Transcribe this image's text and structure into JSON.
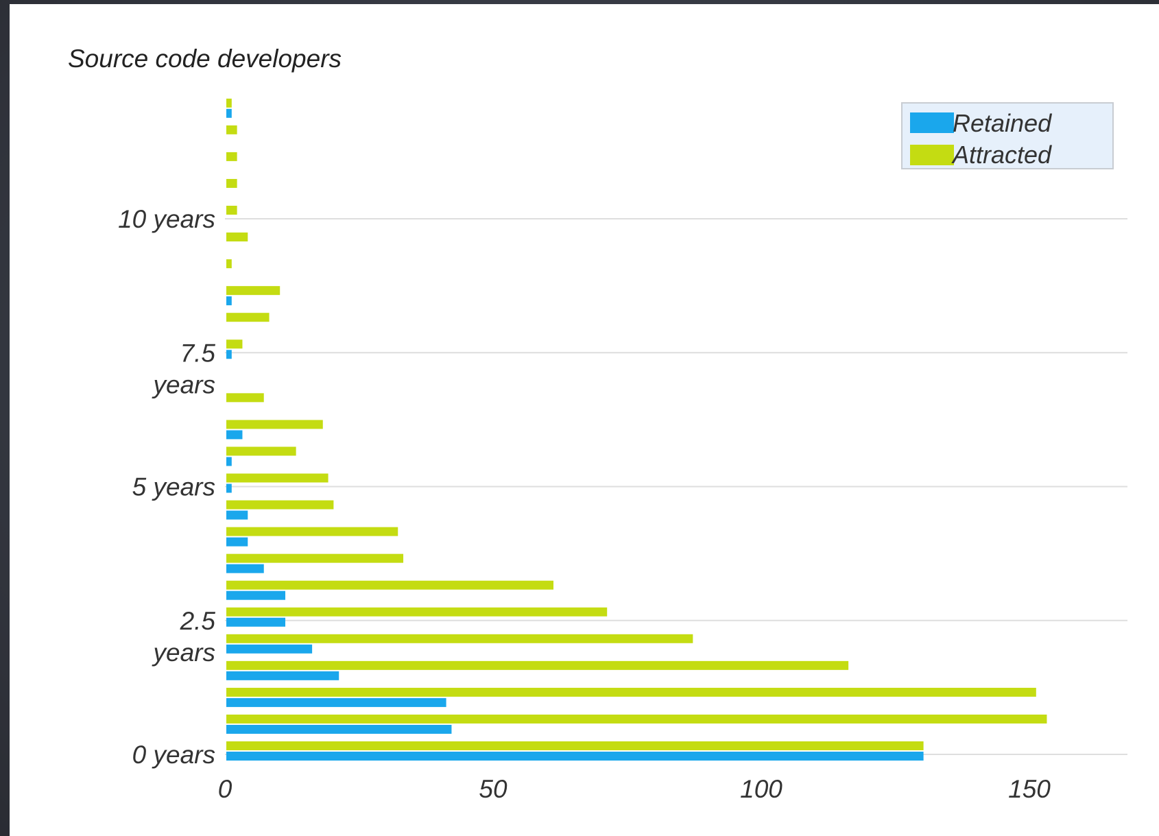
{
  "colors": {
    "retained": "#1aa7ec",
    "attracted": "#c4dc12"
  },
  "chart_data": {
    "type": "bar",
    "orientation": "horizontal",
    "title": "Source code developers",
    "xlabel": "",
    "ylabel": "",
    "xlim": [
      0,
      165
    ],
    "xticks": [
      "0",
      "50",
      "100",
      "150"
    ],
    "xtick_values": [
      0,
      50,
      100,
      150
    ],
    "yticks": [
      {
        "label": [
          "0 years"
        ],
        "value": 0
      },
      {
        "label": [
          "2.5",
          "years"
        ],
        "value": 2.5
      },
      {
        "label": [
          "5 years"
        ],
        "value": 5
      },
      {
        "label": [
          "7.5",
          "years"
        ],
        "value": 7.5
      },
      {
        "label": [
          "10 years"
        ],
        "value": 10
      }
    ],
    "grid": true,
    "legend_position": "top-right",
    "categories": [
      0,
      0.5,
      1,
      1.5,
      2,
      2.5,
      3,
      3.5,
      4,
      4.5,
      5,
      5.5,
      6,
      6.5,
      7,
      7.5,
      8,
      8.5,
      9,
      9.5,
      10,
      10.5,
      11,
      11.5,
      12
    ],
    "series": [
      {
        "name": "Retained",
        "values": [
          130,
          42,
          41,
          21,
          16,
          11,
          11,
          7,
          4,
          4,
          1,
          1,
          3,
          0,
          0,
          1,
          0,
          1,
          0,
          0,
          0,
          0,
          0,
          0,
          1
        ]
      },
      {
        "name": "Attracted",
        "values": [
          130,
          153,
          151,
          116,
          87,
          71,
          61,
          33,
          32,
          20,
          19,
          13,
          18,
          7,
          0,
          3,
          8,
          10,
          1,
          4,
          2,
          2,
          2,
          2,
          1
        ]
      }
    ]
  }
}
